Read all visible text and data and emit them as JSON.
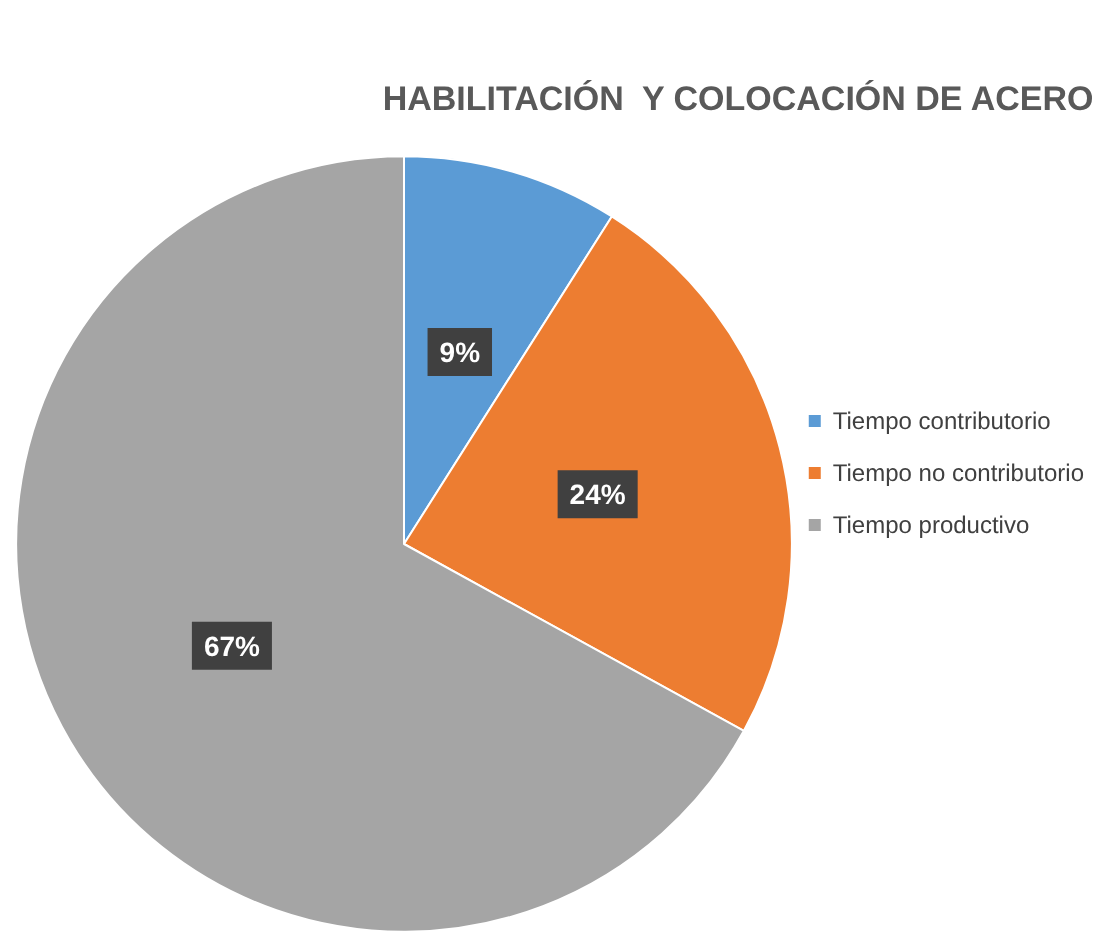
{
  "chart_data": {
    "type": "pie",
    "title": "HABILITACIÓN  Y COLOCACIÓN DE ACERO",
    "categories": [
      "Tiempo contributorio",
      "Tiempo no contributorio",
      "Tiempo productivo"
    ],
    "values": [
      9,
      24,
      67
    ],
    "colors": [
      "#5b9bd5",
      "#ed7d31",
      "#a5a5a5"
    ],
    "value_labels": [
      "9%",
      "24%",
      "67%"
    ],
    "legend": "right"
  }
}
